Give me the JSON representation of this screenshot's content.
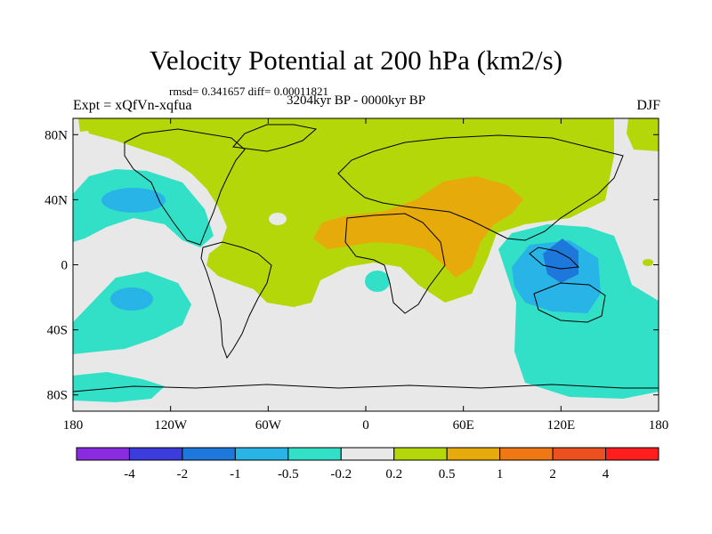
{
  "header": {
    "title": "Velocity Potential at 200 hPa (km2/s)",
    "stats": "rmsd= 0.341657 diff= 0.00011821",
    "experiment": "Expt = xQfVn-xqfua",
    "period": "3204kyr BP - 0000kyr BP",
    "season": "DJF"
  },
  "map": {
    "lat_labels": [
      "80N",
      "40N",
      "0",
      "40S",
      "80S"
    ],
    "lon_labels": [
      "180",
      "120W",
      "60W",
      "0",
      "60E",
      "120E",
      "180"
    ],
    "lat_values": [
      80,
      40,
      0,
      -40,
      -80
    ],
    "lon_values": [
      -180,
      -120,
      -60,
      0,
      60,
      120,
      180
    ]
  },
  "colorbar": {
    "labels": [
      "-4",
      "-2",
      "-1",
      "-0.5",
      "-0.2",
      "0.2",
      "0.5",
      "1",
      "2",
      "4"
    ],
    "colors": [
      "#8a2be2",
      "#3c3cdc",
      "#1e78dc",
      "#28b4e6",
      "#32e0c8",
      "#e8e8e8",
      "#b4d70a",
      "#e6aa0a",
      "#f07814",
      "#eb501e",
      "#ff1e1e"
    ]
  },
  "colors": {
    "background": "#e8e8e8",
    "teal": "#32e0c8",
    "lightblue": "#28b4e6",
    "blue": "#1e78dc",
    "green": "#b4d70a",
    "orange": "#e6aa0a"
  }
}
